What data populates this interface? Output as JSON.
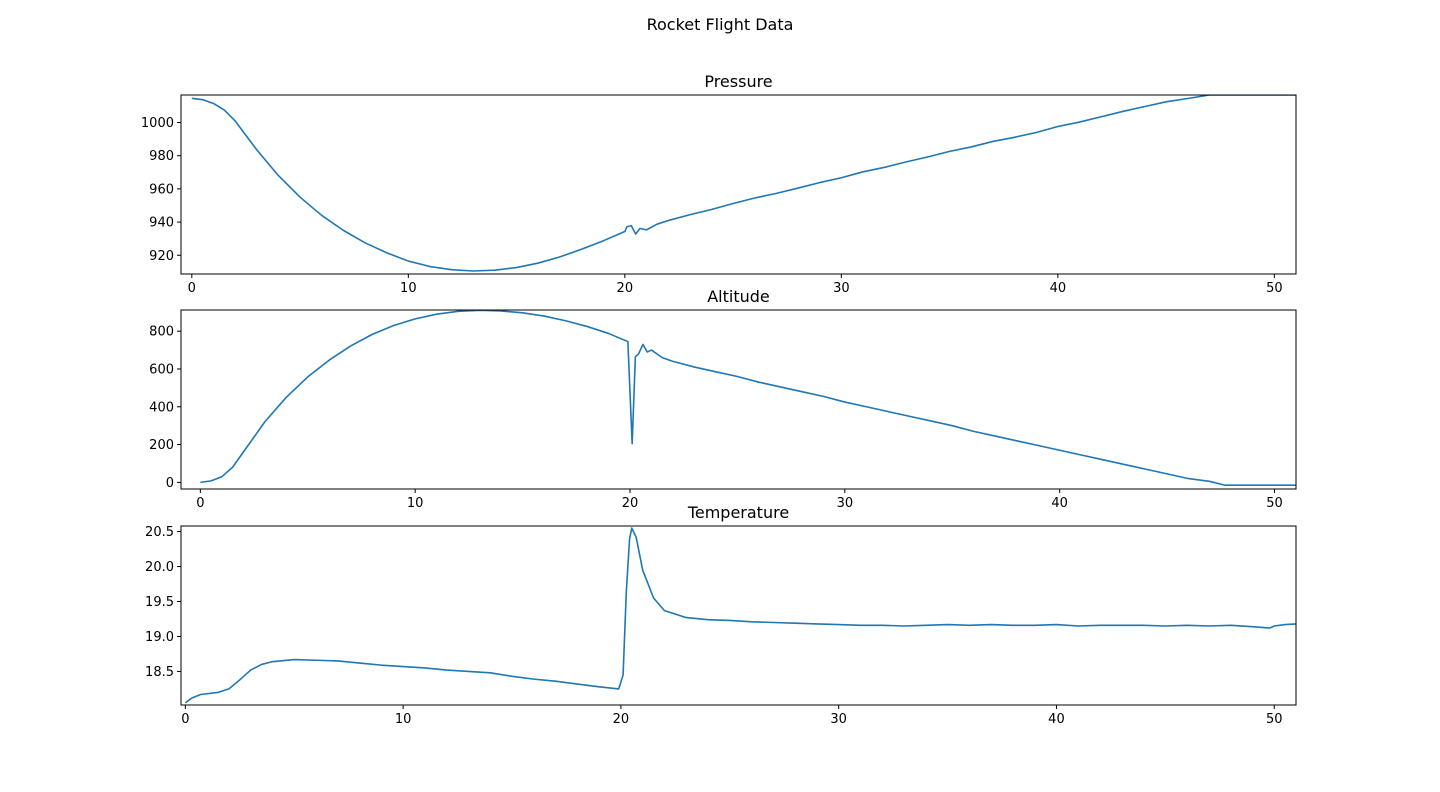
{
  "figure_title": "Rocket Flight Data",
  "line_color": "#1f77b4",
  "chart_data": [
    {
      "type": "line",
      "title": "Pressure",
      "xlabel": "",
      "ylabel": "",
      "xlim": [
        -0.5,
        51
      ],
      "ylim": [
        908.7,
        1016.6
      ],
      "xticks": [
        0,
        10,
        20,
        30,
        40,
        50
      ],
      "yticks": [
        920,
        940,
        960,
        980,
        1000
      ],
      "grid": false,
      "legend": "none",
      "x": [
        0,
        0.5,
        1,
        1.5,
        2,
        3,
        4,
        5,
        6,
        7,
        8,
        9,
        10,
        11,
        12,
        13,
        14,
        15,
        16,
        17,
        18,
        19,
        20,
        20.1,
        20.3,
        20.5,
        20.7,
        21,
        21.5,
        22,
        23,
        24,
        25,
        26,
        27,
        28,
        29,
        30,
        31,
        32,
        33,
        34,
        35,
        36,
        37,
        38,
        39,
        40,
        41,
        42,
        43,
        44,
        45,
        46,
        47,
        47.7,
        48,
        51
      ],
      "y": [
        1014.6,
        1013.8,
        1011.5,
        1007.5,
        1001,
        983.5,
        968,
        955,
        944,
        935,
        927.5,
        921.5,
        916.5,
        913.2,
        911.3,
        910.5,
        911,
        912.6,
        915.3,
        919,
        923.6,
        928.7,
        934.3,
        937.2,
        937.8,
        932.8,
        936.2,
        935.3,
        938.8,
        940.9,
        944.4,
        947.6,
        951.2,
        954.5,
        957.3,
        960.5,
        963.8,
        966.7,
        970.3,
        973,
        976.3,
        979.3,
        982.6,
        985.3,
        988.6,
        991.1,
        994,
        997.6,
        1000.3,
        1003.5,
        1006.7,
        1009.6,
        1012.5,
        1014.5,
        1016.6,
        1016.6,
        1016.6,
        1016.6
      ]
    },
    {
      "type": "line",
      "title": "Altitude",
      "xlabel": "",
      "ylabel": "",
      "xlim": [
        -0.9,
        51
      ],
      "ylim": [
        -35,
        912
      ],
      "xticks": [
        0,
        10,
        20,
        30,
        40,
        50
      ],
      "yticks": [
        0,
        200,
        400,
        600,
        800
      ],
      "grid": false,
      "legend": "none",
      "x": [
        0,
        0.5,
        1,
        1.5,
        2,
        3,
        4,
        5,
        6,
        7,
        8,
        9,
        10,
        11,
        12,
        13,
        14,
        15,
        16,
        17,
        18,
        19,
        19.9,
        20.1,
        20.25,
        20.4,
        20.6,
        20.8,
        21,
        21.5,
        22,
        23,
        24,
        25,
        26,
        27,
        28,
        29,
        30,
        31,
        32,
        33,
        34,
        35,
        36,
        37,
        38,
        39,
        40,
        41,
        42,
        43,
        44,
        45,
        46,
        47,
        47.7,
        51
      ],
      "y": [
        0,
        8,
        30,
        80,
        160,
        320,
        450,
        558,
        647,
        722,
        783,
        830,
        865,
        890,
        905,
        910,
        907,
        897,
        880,
        855,
        825,
        788,
        745,
        205,
        665,
        680,
        730,
        690,
        700,
        660,
        640,
        610,
        585,
        560,
        530,
        505,
        480,
        455,
        425,
        400,
        375,
        350,
        325,
        300,
        270,
        245,
        220,
        195,
        170,
        145,
        120,
        95,
        70,
        45,
        20,
        5,
        -15,
        -15
      ]
    },
    {
      "type": "line",
      "title": "Temperature",
      "xlabel": "",
      "ylabel": "",
      "xlim": [
        -0.2,
        51
      ],
      "ylim": [
        18.02,
        20.58
      ],
      "xticks": [
        0,
        10,
        20,
        30,
        40,
        50
      ],
      "yticks": [
        18.5,
        19.0,
        19.5,
        20.0,
        20.5
      ],
      "grid": false,
      "legend": "none",
      "x": [
        0,
        0.3,
        0.7,
        1.5,
        2,
        2.5,
        3,
        3.5,
        4,
        5,
        6,
        7,
        8,
        9,
        10,
        11,
        12,
        13,
        14,
        15,
        16,
        17,
        18,
        19,
        19.9,
        20.1,
        20.25,
        20.4,
        20.5,
        20.7,
        21,
        21.5,
        22,
        23,
        24,
        25,
        26,
        27,
        28,
        29,
        30,
        31,
        32,
        33,
        34,
        35,
        36,
        37,
        38,
        39,
        40,
        41,
        42,
        43,
        44,
        45,
        46,
        47,
        48,
        49,
        49.8,
        50,
        50.5,
        51
      ],
      "y": [
        18.05,
        18.12,
        18.17,
        18.2,
        18.25,
        18.38,
        18.52,
        18.6,
        18.64,
        18.67,
        18.66,
        18.65,
        18.62,
        18.59,
        18.57,
        18.55,
        18.52,
        18.5,
        18.48,
        18.43,
        18.39,
        18.36,
        18.32,
        18.28,
        18.25,
        18.45,
        19.65,
        20.4,
        20.55,
        20.42,
        19.95,
        19.55,
        19.37,
        19.27,
        19.24,
        19.23,
        19.21,
        19.2,
        19.19,
        19.18,
        19.17,
        19.16,
        19.16,
        19.15,
        19.16,
        19.17,
        19.16,
        19.17,
        19.16,
        19.16,
        19.17,
        19.15,
        19.16,
        19.16,
        19.16,
        19.15,
        19.16,
        19.15,
        19.16,
        19.14,
        19.12,
        19.15,
        19.17,
        19.18
      ]
    }
  ]
}
